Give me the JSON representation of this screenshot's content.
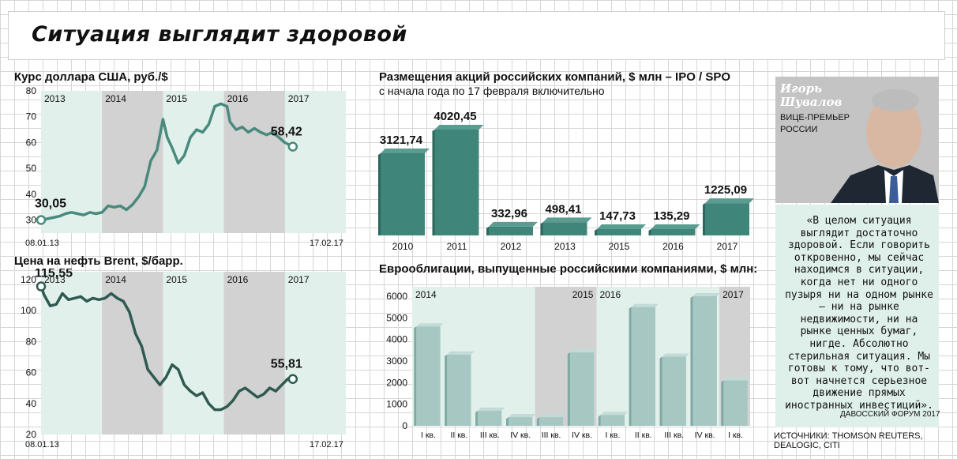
{
  "title": "Ситуация выглядит здоровой",
  "colors": {
    "dark": "#2f5a52",
    "line": "#4a8a7e",
    "bar": "#3f857a",
    "bar_light": "#a7c7c3",
    "panel_light": "#e1f0ea",
    "panel_gray": "#d2d2d2"
  },
  "usd": {
    "title": "Курс доллара США, руб./$",
    "start_label": "30,05",
    "end_label": "58,42",
    "date_start": "08.01.13",
    "date_end": "17.02.17"
  },
  "oil": {
    "title": "Цена на нефть Brent, $/барр.",
    "start_label": "115,55",
    "end_label": "55,81",
    "date_start": "08.01.13",
    "date_end": "17.02.17"
  },
  "ipo": {
    "title": "Размещения акций российских компаний, $ млн – IPO / SPO",
    "subtitle": "с начала года по 17 февраля включительно"
  },
  "euro": {
    "title": "Еврооблигации, выпущенные российскими компаниями, $ млн:"
  },
  "person": {
    "name_line1": "Игорь",
    "name_line2": "Шувалов",
    "role_line1": "ВИЦЕ-ПРЕМЬЕР",
    "role_line2": "РОССИИ",
    "quote": "«В целом ситуация выглядит достаточно здоровой. Если говорить откровенно, мы сейчас находимся в ситуации, когда нет ни одного пузыря ни на одном рынке – ни на рынке недвижимости, ни на рынке ценных бумаг, нигде. Абсолютно стерильная ситуация. Мы готовы к тому, что вот-вот начнется серьезное движение прямых иностранных инвестиций».",
    "source": "ДАВОССКИЙ ФОРУМ 2017"
  },
  "sources": "ИСТОЧНИКИ: THOMSON REUTERS, DEALOGIC, CITI",
  "chart_data": [
    {
      "type": "line",
      "title": "Курс доллара США, руб./$",
      "year_bands": [
        "2013",
        "2014",
        "2015",
        "2016",
        "2017"
      ],
      "ylim": [
        25,
        80
      ],
      "yticks": [
        30,
        40,
        50,
        60,
        70,
        80
      ],
      "x": [
        2013.0,
        2013.1,
        2013.2,
        2013.3,
        2013.4,
        2013.5,
        2013.6,
        2013.7,
        2013.8,
        2013.9,
        2014.0,
        2014.1,
        2014.2,
        2014.3,
        2014.4,
        2014.5,
        2014.6,
        2014.7,
        2014.8,
        2014.9,
        2015.0,
        2015.07,
        2015.15,
        2015.25,
        2015.35,
        2015.45,
        2015.55,
        2015.65,
        2015.75,
        2015.85,
        2015.95,
        2016.05,
        2016.1,
        2016.2,
        2016.3,
        2016.4,
        2016.5,
        2016.6,
        2016.7,
        2016.8,
        2016.9,
        2017.0,
        2017.13
      ],
      "values": [
        30.05,
        30.5,
        31,
        31.5,
        32.5,
        33,
        32.5,
        32,
        33,
        32.5,
        33,
        35.5,
        35,
        35.5,
        34,
        36,
        39,
        43,
        53,
        57,
        69,
        62,
        58,
        52,
        55,
        62,
        65,
        64,
        67,
        74,
        75,
        74,
        68,
        65,
        66,
        64,
        65.5,
        64,
        63,
        64,
        62,
        60,
        58.42
      ],
      "start_label": "30,05",
      "end_label": "58,42"
    },
    {
      "type": "line",
      "title": "Цена на нефть Brent, $/барр.",
      "year_bands": [
        "2013",
        "2014",
        "2015",
        "2016",
        "2017"
      ],
      "ylim": [
        20,
        125
      ],
      "yticks": [
        20,
        40,
        60,
        80,
        100,
        120
      ],
      "x": [
        2013.0,
        2013.05,
        2013.15,
        2013.25,
        2013.35,
        2013.45,
        2013.55,
        2013.65,
        2013.75,
        2013.85,
        2013.95,
        2014.05,
        2014.15,
        2014.25,
        2014.35,
        2014.45,
        2014.55,
        2014.65,
        2014.75,
        2014.85,
        2014.95,
        2015.05,
        2015.15,
        2015.25,
        2015.35,
        2015.45,
        2015.55,
        2015.65,
        2015.75,
        2015.85,
        2015.95,
        2016.05,
        2016.15,
        2016.25,
        2016.35,
        2016.45,
        2016.55,
        2016.65,
        2016.75,
        2016.85,
        2016.95,
        2017.05,
        2017.13
      ],
      "values": [
        115.55,
        110,
        103,
        104,
        111,
        107,
        108,
        109,
        106,
        108,
        107,
        108,
        111,
        108,
        106,
        99,
        85,
        77,
        62,
        57,
        52,
        57,
        65,
        62,
        52,
        48,
        45,
        47,
        40,
        36,
        36,
        38,
        42,
        48,
        50,
        47,
        44,
        46,
        50,
        48,
        52,
        56,
        55.81
      ],
      "start_label": "115,55",
      "end_label": "55,81"
    },
    {
      "type": "bar",
      "title": "Размещения акций российских компаний, $ млн – IPO / SPO",
      "subtitle": "с начала года по 17 февраля включительно",
      "categories": [
        "2010",
        "2011",
        "2012",
        "2013",
        "2015",
        "2016",
        "2017"
      ],
      "values": [
        3121.74,
        4020.45,
        332.96,
        498.41,
        147.73,
        135.29,
        1225.09
      ],
      "labels": [
        "3121,74",
        "4020,45",
        "332,96",
        "498,41",
        "147,73",
        "135,29",
        "1225,09"
      ]
    },
    {
      "type": "bar",
      "title": "Еврооблигации, выпущенные российскими компаниями, $ млн:",
      "year_bands": [
        "2014",
        "2015",
        "2016",
        "2017"
      ],
      "categories": [
        "I кв.",
        "II кв.",
        "III кв.",
        "IV кв.",
        "III кв.",
        "IV кв.",
        "I кв.",
        "II кв.",
        "III кв.",
        "IV кв.",
        "I кв."
      ],
      "values": [
        4600,
        3300,
        700,
        400,
        400,
        3400,
        500,
        5500,
        3200,
        6000,
        2100
      ],
      "ylim": [
        0,
        6000
      ],
      "yticks": [
        0,
        1000,
        2000,
        3000,
        4000,
        5000,
        6000
      ]
    }
  ]
}
